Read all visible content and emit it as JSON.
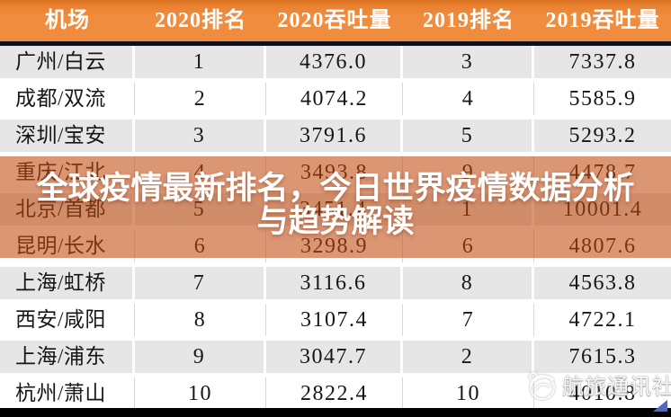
{
  "chart_data": {
    "type": "table",
    "columns": [
      "机场",
      "2020排名",
      "2020吞吐量",
      "2019排名",
      "2019吞吐量"
    ],
    "rows": [
      [
        "广州/白云",
        "1",
        "4376.0",
        "3",
        "7337.8"
      ],
      [
        "成都/双流",
        "2",
        "4074.2",
        "4",
        "5585.9"
      ],
      [
        "深圳/宝安",
        "3",
        "3791.6",
        "5",
        "5293.2"
      ],
      [
        "重庆/江北",
        "4",
        "3493.8",
        "9",
        "4478.7"
      ],
      [
        "北京/首都",
        "5",
        "3451.4",
        "1",
        "10001.4"
      ],
      [
        "昆明/长水",
        "6",
        "3298.9",
        "6",
        "4807.6"
      ],
      [
        "上海/虹桥",
        "7",
        "3116.6",
        "8",
        "4563.8"
      ],
      [
        "西安/咸阳",
        "8",
        "3107.4",
        "7",
        "4722.1"
      ],
      [
        "上海/浦东",
        "9",
        "3047.7",
        "2",
        "7615.3"
      ],
      [
        "杭州/萧山",
        "10",
        "2822.4",
        "10",
        "4010.8"
      ]
    ],
    "title": "全球疫情最新排名，今日世界疫情数据分析与趋势解读",
    "legend_position": "none",
    "grid": true
  },
  "overlay": {
    "line1": "全球疫情最新排名，今日世界疫情数据分析",
    "line2": "与趋势解读"
  },
  "watermark": {
    "label": "航旅通讯社"
  },
  "colors": {
    "header_orange": "#f08c3e",
    "header_divider": "#0d1119",
    "row_gray": "#e6e6e6",
    "row_white": "#ffffff",
    "overlay_band": "rgba(193,74,16,0.58)",
    "headline_text": "#ffffff",
    "bottom_bar": "#030303",
    "corner_triangle_blue": "#4e68c9"
  }
}
